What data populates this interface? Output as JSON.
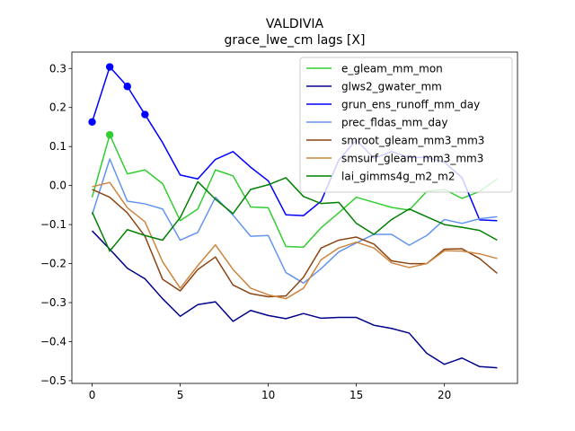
{
  "chart_data": {
    "type": "line",
    "title": "VALDIVIA",
    "subtitle": "grace_lwe_cm lags [X]",
    "xlabel": "",
    "ylabel": "",
    "xlim": [
      -1.15,
      24.15
    ],
    "ylim": [
      -0.507,
      0.342
    ],
    "xticks": [
      0,
      5,
      10,
      15,
      20
    ],
    "yticks": [
      -0.5,
      -0.4,
      -0.3,
      -0.2,
      -0.1,
      0.0,
      0.1,
      0.2,
      0.3
    ],
    "ytick_labels": [
      "−0.5",
      "−0.4",
      "−0.3",
      "−0.2",
      "−0.1",
      "0.0",
      "0.1",
      "0.2",
      "0.3"
    ],
    "legend_position": "upper right",
    "x": [
      0,
      1,
      2,
      3,
      4,
      5,
      6,
      7,
      8,
      9,
      10,
      11,
      12,
      13,
      14,
      15,
      16,
      17,
      18,
      19,
      20,
      21,
      22,
      23
    ],
    "series": [
      {
        "name": "e_gleam_mm_mon",
        "color": "#32cd32",
        "values": [
          -0.03,
          0.13,
          0.03,
          0.04,
          0.005,
          -0.09,
          -0.06,
          0.04,
          0.025,
          -0.055,
          -0.057,
          -0.156,
          -0.158,
          -0.108,
          -0.07,
          -0.03,
          -0.043,
          -0.056,
          -0.063,
          -0.015,
          -0.01,
          -0.033,
          -0.015,
          0.017
        ],
        "markers": [
          1
        ]
      },
      {
        "name": "glws2_gwater_mm",
        "color": "#00008b",
        "values": [
          -0.116,
          -0.163,
          -0.212,
          -0.239,
          -0.29,
          -0.335,
          -0.305,
          -0.298,
          -0.348,
          -0.32,
          -0.333,
          -0.341,
          -0.328,
          -0.34,
          -0.338,
          -0.338,
          -0.358,
          -0.366,
          -0.378,
          -0.43,
          -0.458,
          -0.442,
          -0.464,
          -0.467
        ],
        "markers": []
      },
      {
        "name": "grun_ens_runoff_mm_day",
        "color": "#0000ff",
        "values": [
          0.163,
          0.304,
          0.254,
          0.182,
          0.11,
          0.027,
          0.017,
          0.067,
          0.087,
          0.047,
          0.012,
          -0.075,
          -0.077,
          -0.04,
          0.065,
          0.117,
          0.07,
          0.087,
          0.072,
          0.072,
          0.06,
          0.02,
          -0.088,
          -0.09
        ],
        "markers": [
          0,
          1,
          2,
          3
        ]
      },
      {
        "name": "prec_fldas_mm_day",
        "color": "#6495ed",
        "values": [
          -0.075,
          0.068,
          -0.04,
          -0.047,
          -0.06,
          -0.14,
          -0.12,
          -0.03,
          -0.076,
          -0.13,
          -0.128,
          -0.223,
          -0.25,
          -0.213,
          -0.17,
          -0.147,
          -0.125,
          -0.125,
          -0.153,
          -0.128,
          -0.087,
          -0.097,
          -0.085,
          -0.08
        ],
        "markers": []
      },
      {
        "name": "smroot_gleam_mm3_mm3",
        "color": "#8b4513",
        "values": [
          -0.01,
          -0.03,
          -0.07,
          -0.13,
          -0.24,
          -0.27,
          -0.215,
          -0.183,
          -0.255,
          -0.277,
          -0.285,
          -0.283,
          -0.235,
          -0.16,
          -0.14,
          -0.132,
          -0.15,
          -0.193,
          -0.2,
          -0.2,
          -0.163,
          -0.162,
          -0.187,
          -0.225
        ],
        "markers": []
      },
      {
        "name": "smsurf_gleam_mm3_mm3",
        "color": "#cd853f",
        "values": [
          -0.003,
          0.008,
          -0.057,
          -0.093,
          -0.195,
          -0.263,
          -0.205,
          -0.152,
          -0.215,
          -0.263,
          -0.28,
          -0.29,
          -0.263,
          -0.19,
          -0.16,
          -0.145,
          -0.16,
          -0.198,
          -0.21,
          -0.2,
          -0.167,
          -0.168,
          -0.175,
          -0.187
        ],
        "markers": []
      },
      {
        "name": "lai_gimms4g_m2_m2",
        "color": "#008000",
        "values": [
          -0.068,
          -0.168,
          -0.113,
          -0.128,
          -0.14,
          -0.082,
          0.01,
          -0.035,
          -0.072,
          -0.01,
          0.002,
          0.02,
          -0.028,
          -0.046,
          -0.043,
          -0.097,
          -0.125,
          -0.087,
          -0.06,
          -0.08,
          -0.1,
          -0.107,
          -0.115,
          -0.14
        ],
        "markers": []
      }
    ]
  }
}
